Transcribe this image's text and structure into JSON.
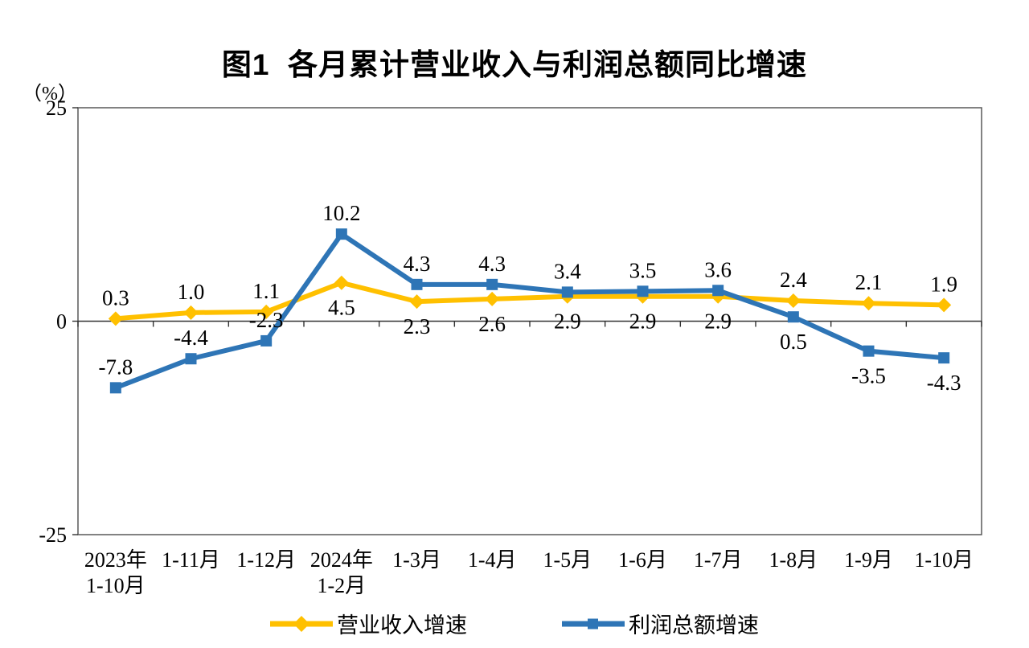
{
  "chart_data": {
    "type": "line",
    "title": "图1  各月累计营业收入与利润总额同比增速",
    "unit_label": "（%）",
    "ylim": [
      -25,
      25
    ],
    "yticks": [
      25,
      0,
      -25
    ],
    "grid": false,
    "legend_position": "bottom",
    "categories": [
      [
        "2023年",
        "1-10月"
      ],
      [
        "1-11月"
      ],
      [
        "1-12月"
      ],
      [
        "2024年",
        "1-2月"
      ],
      [
        "1-3月"
      ],
      [
        "1-4月"
      ],
      [
        "1-5月"
      ],
      [
        "1-6月"
      ],
      [
        "1-7月"
      ],
      [
        "1-8月"
      ],
      [
        "1-9月"
      ],
      [
        "1-10月"
      ]
    ],
    "series": [
      {
        "name": "营业收入增速",
        "color": "#FFC000",
        "marker": "diamond",
        "values": [
          0.3,
          1.0,
          1.1,
          4.5,
          2.3,
          2.6,
          2.9,
          2.9,
          2.9,
          2.4,
          2.1,
          1.9
        ],
        "label_positions": [
          "above",
          "above",
          "above",
          "below",
          "below",
          "below",
          "below",
          "below",
          "below",
          "above",
          "above",
          "above"
        ]
      },
      {
        "name": "利润总额增速",
        "color": "#2E75B6",
        "marker": "square",
        "values": [
          -7.8,
          -4.4,
          -2.3,
          10.2,
          4.3,
          4.3,
          3.4,
          3.5,
          3.6,
          0.5,
          -3.5,
          -4.3
        ],
        "label_positions": [
          "above",
          "above",
          "above",
          "above",
          "above",
          "above",
          "above",
          "above",
          "above",
          "below",
          "below",
          "below"
        ]
      }
    ],
    "axis_color": "#595959",
    "zero_line_color": "#333333"
  }
}
